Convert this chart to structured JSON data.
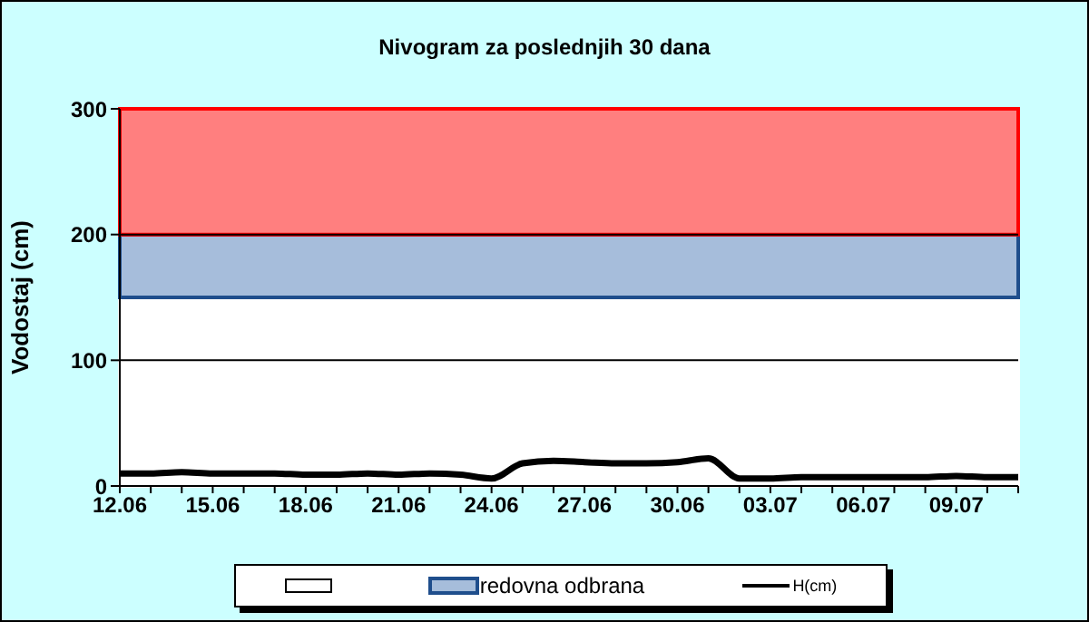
{
  "chart_data": {
    "type": "line",
    "title": "Nivogram za poslednjih 30 dana",
    "ylabel": "Vodostaj (cm)",
    "categories": [
      "12.06",
      null,
      null,
      "15.06",
      null,
      null,
      "18.06",
      null,
      null,
      "21.06",
      null,
      null,
      "24.06",
      null,
      null,
      "27.06",
      null,
      null,
      "30.06",
      null,
      null,
      "03.07",
      null,
      null,
      "06.07",
      null,
      null,
      "09.07",
      null,
      null
    ],
    "series": [
      {
        "name": "H(cm)",
        "color": "#000000",
        "values": [
          10,
          10,
          11,
          10,
          10,
          10,
          9,
          9,
          10,
          9,
          10,
          9,
          6,
          18,
          20,
          19,
          18,
          18,
          19,
          22,
          6,
          6,
          7,
          7,
          7,
          7,
          7,
          8,
          7,
          7
        ]
      }
    ],
    "ylim": [
      0,
      300
    ],
    "yticks": [
      0,
      100,
      200,
      300
    ],
    "grid": "y",
    "legend": "bottom",
    "marker": "none",
    "line_style": "solid",
    "bands": [
      {
        "axis": "y",
        "from": 0,
        "to": 150,
        "label": null,
        "color": "#ffffff"
      },
      {
        "axis": "y",
        "from": 150,
        "to": 200,
        "label": "redovna odbrana",
        "color": "#a6bddb"
      },
      {
        "axis": "y",
        "from": 200,
        "to": 300,
        "label": null,
        "color": "#ff7f7f"
      }
    ]
  }
}
